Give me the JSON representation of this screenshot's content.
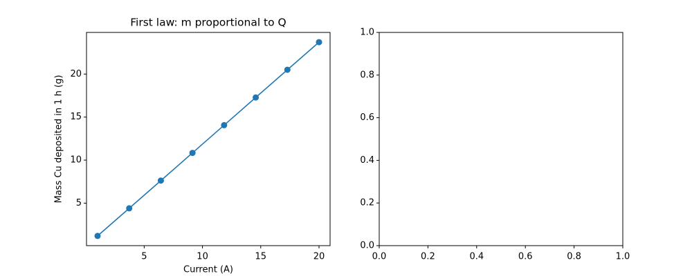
{
  "chart_data": [
    {
      "type": "line",
      "title": "First law: m proportional to Q",
      "xlabel": "Current (A)",
      "ylabel": "Mass Cu deposited in 1 h (g)",
      "x": [
        1,
        3.714,
        6.429,
        9.143,
        11.857,
        14.571,
        17.286,
        20
      ],
      "values": [
        1.19,
        4.4,
        7.62,
        10.84,
        14.06,
        17.28,
        20.5,
        23.71
      ],
      "color": "#1f77b4",
      "marker": true,
      "xlim": [
        0.05,
        20.95
      ],
      "ylim": [
        0.06,
        24.84
      ],
      "xticks": [
        5,
        10,
        15,
        20
      ],
      "yticks": [
        5,
        10,
        15,
        20
      ]
    },
    {
      "type": "empty",
      "xlim": [
        0,
        1
      ],
      "ylim": [
        0,
        1
      ],
      "xticks": [
        {
          "value": 0,
          "label": "0.0"
        },
        {
          "value": 0.2,
          "label": "0.2"
        },
        {
          "value": 0.4,
          "label": "0.4"
        },
        {
          "value": 0.6,
          "label": "0.6"
        },
        {
          "value": 0.8,
          "label": "0.8"
        },
        {
          "value": 1,
          "label": "1.0"
        }
      ],
      "yticks": [
        {
          "value": 0,
          "label": "0.0"
        },
        {
          "value": 0.2,
          "label": "0.2"
        },
        {
          "value": 0.4,
          "label": "0.4"
        },
        {
          "value": 0.6,
          "label": "0.6"
        },
        {
          "value": 0.8,
          "label": "0.8"
        },
        {
          "value": 1,
          "label": "1.0"
        }
      ]
    }
  ]
}
